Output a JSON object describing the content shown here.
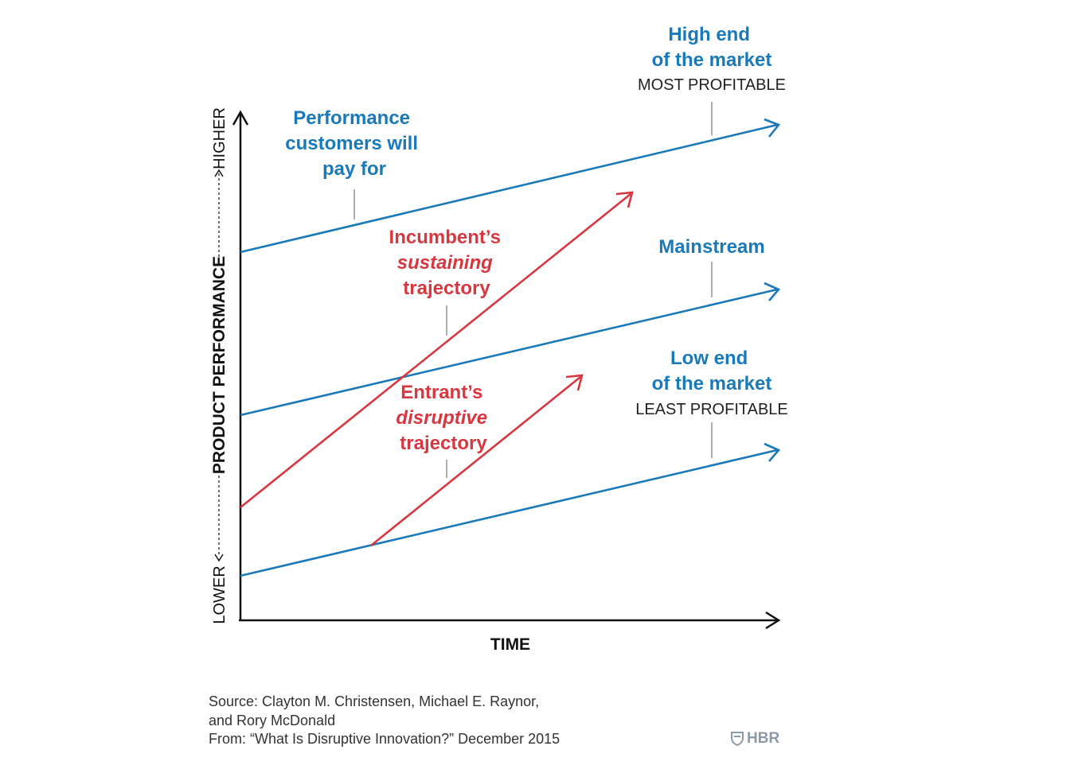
{
  "colors": {
    "market_blue": "#1a79b9",
    "trajectory_red": "#d7373f",
    "axis": "#111111",
    "leader": "#999999"
  },
  "axes": {
    "y_label": "PRODUCT PERFORMANCE",
    "y_high": "HIGHER",
    "y_low": "LOWER",
    "x_label": "TIME"
  },
  "labels": {
    "performance": [
      "Performance",
      "customers will",
      "pay for"
    ],
    "high_end": [
      "High end",
      "of the market"
    ],
    "high_end_note": "MOST PROFITABLE",
    "mainstream": "Mainstream",
    "low_end": [
      "Low end",
      "of the market"
    ],
    "low_end_note": "LEAST PROFITABLE",
    "incumbent": [
      "Incumbent’s",
      "sustaining",
      "trajectory"
    ],
    "entrant": [
      "Entrant’s",
      "disruptive",
      "trajectory"
    ]
  },
  "source": {
    "lines": [
      "Source: Clayton M. Christensen, Michael E. Raynor,",
      "and Rory McDonald",
      "From: “What Is Disruptive Innovation?” December 2015"
    ],
    "brand": "HBR",
    "brand_icon": "shield-icon"
  }
}
